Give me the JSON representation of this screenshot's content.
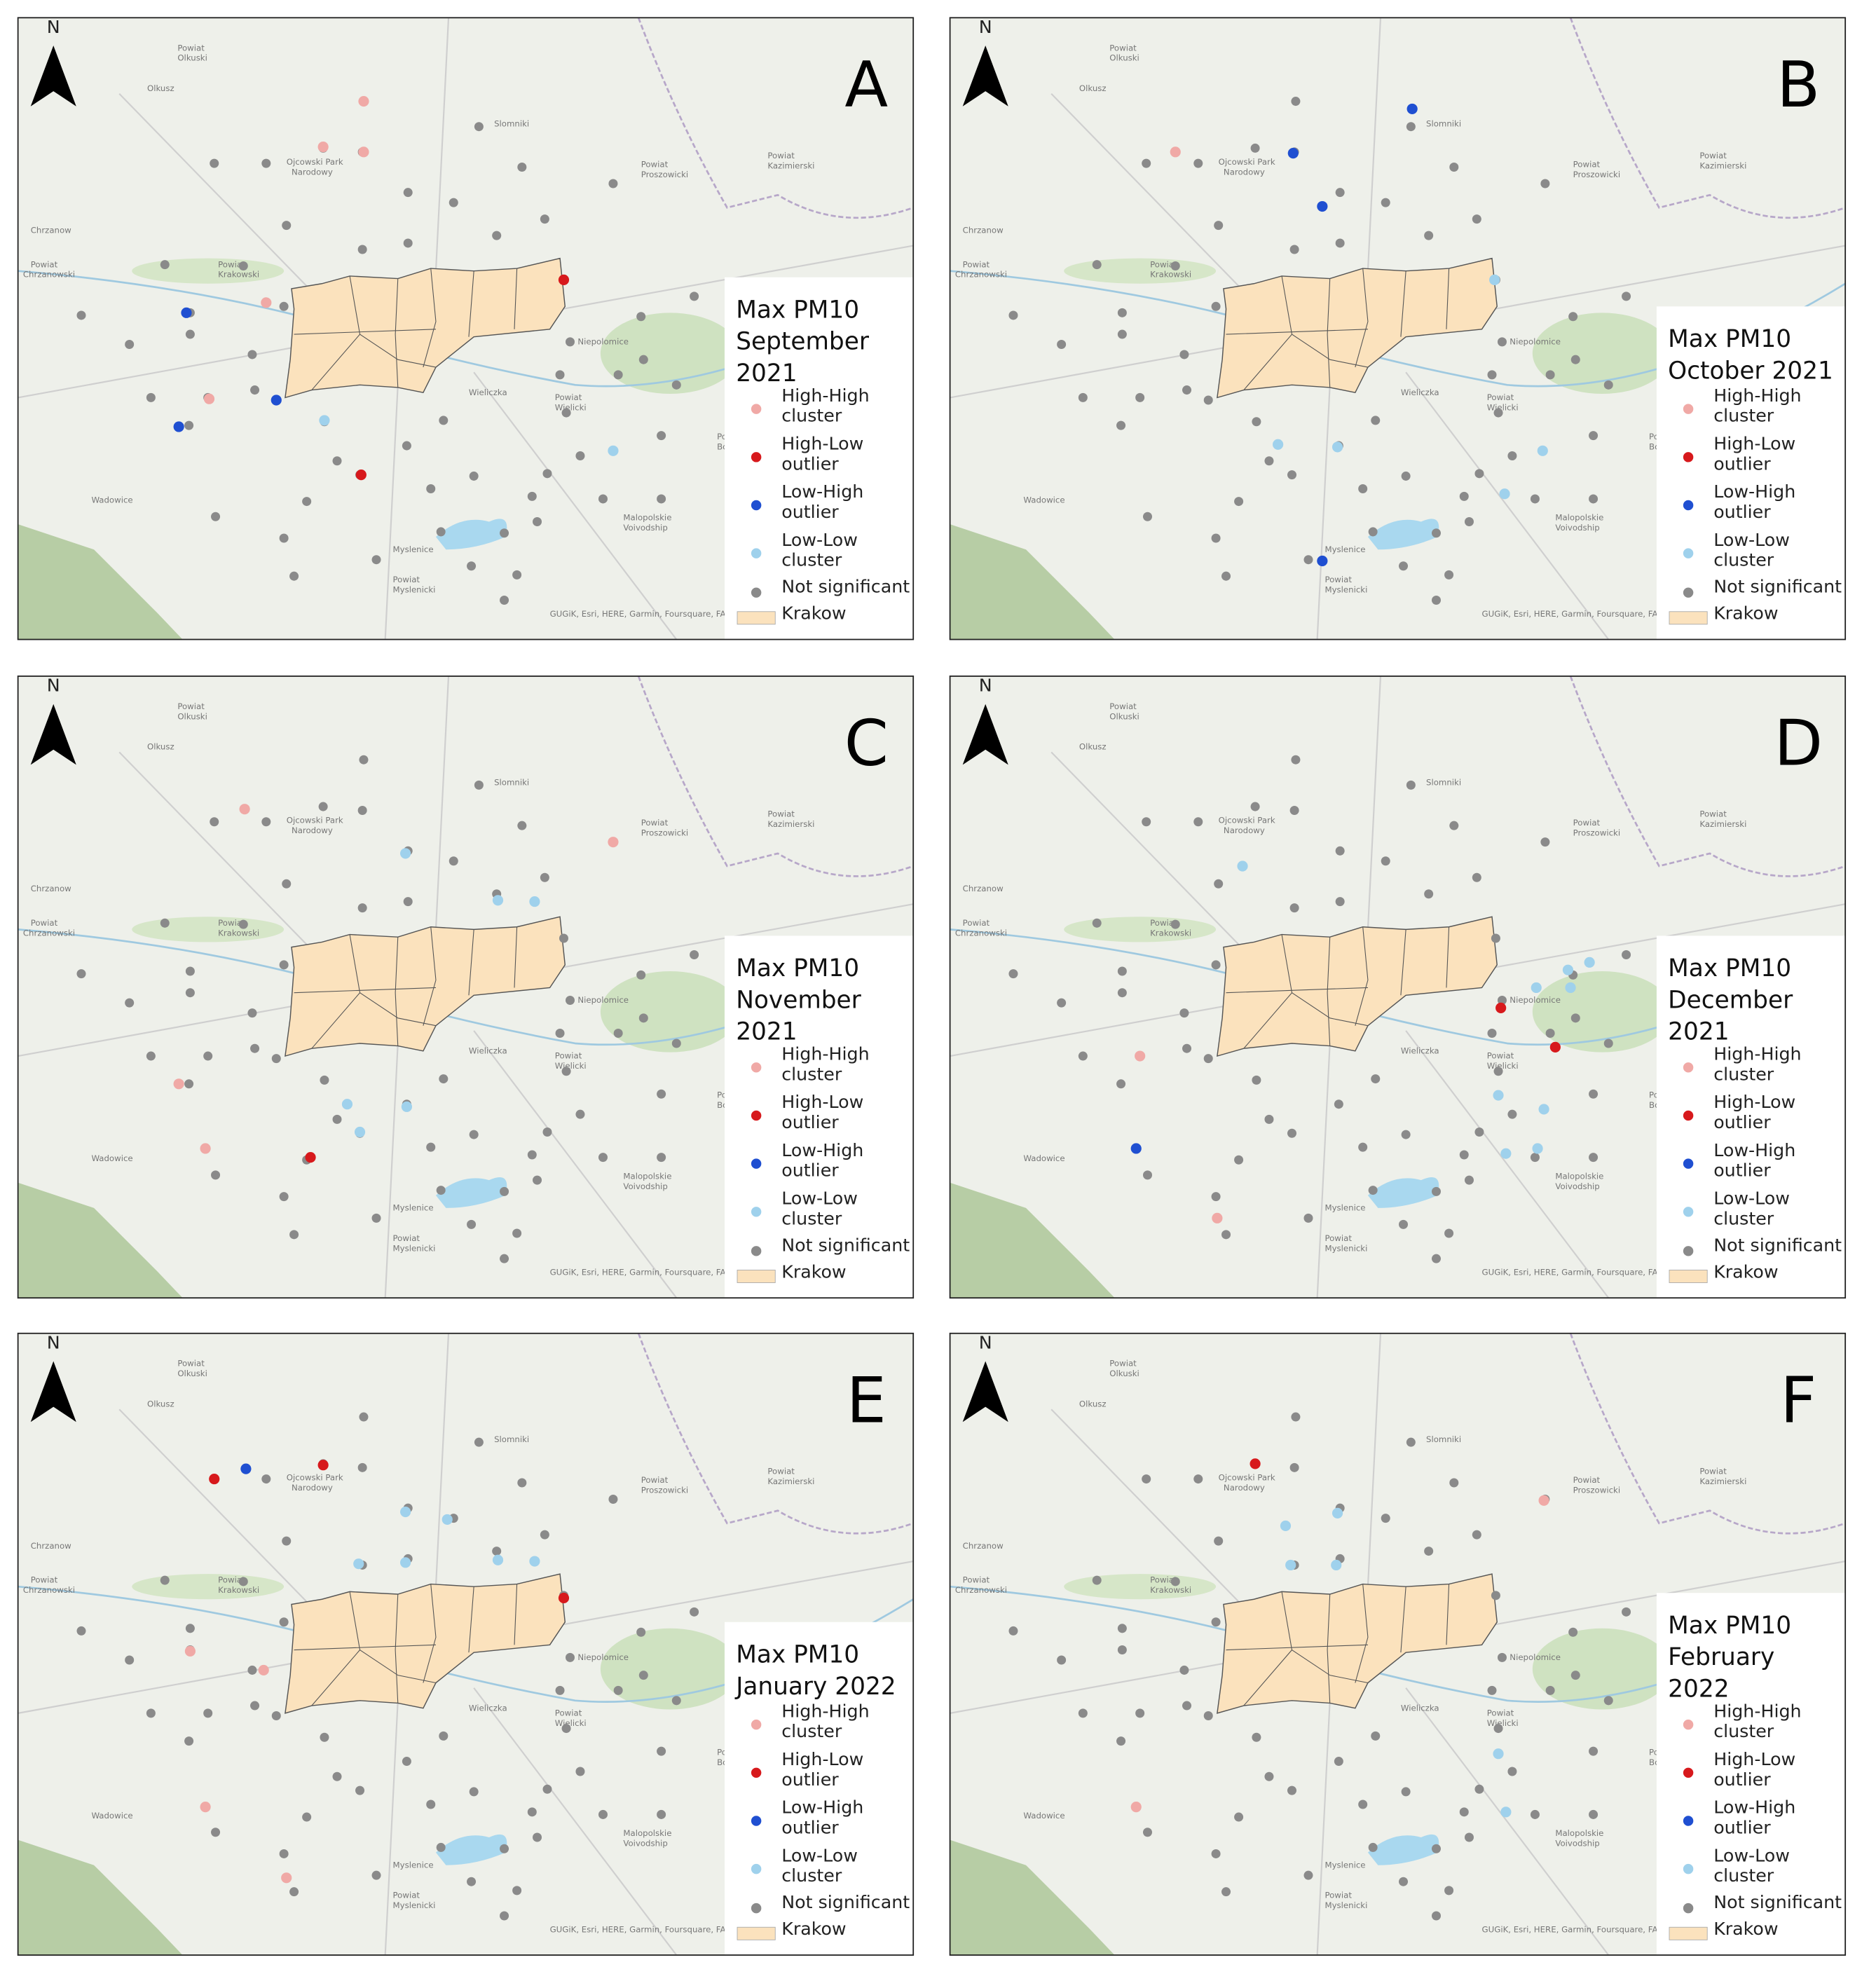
{
  "panels": [
    {
      "letter": "A",
      "title_lines": [
        "Max PM10",
        "September",
        "2021"
      ]
    },
    {
      "letter": "B",
      "title_lines": [
        "Max PM10",
        "October 2021"
      ]
    },
    {
      "letter": "C",
      "title_lines": [
        "Max PM10",
        "November",
        "2021"
      ]
    },
    {
      "letter": "D",
      "title_lines": [
        "Max PM10",
        "December",
        "2021"
      ]
    },
    {
      "letter": "E",
      "title_lines": [
        "Max PM10",
        "January 2022"
      ]
    },
    {
      "letter": "F",
      "title_lines": [
        "Max PM10",
        "February",
        "2022"
      ]
    }
  ],
  "north": "N",
  "legend": [
    {
      "lines": [
        "High-High",
        "cluster"
      ],
      "color": "#f0a9a6"
    },
    {
      "lines": [
        "High-Low",
        "outlier"
      ],
      "color": "#d7191c"
    },
    {
      "lines": [
        "Low-High",
        "outlier"
      ],
      "color": "#1f4fd1"
    },
    {
      "lines": [
        "Low-Low",
        "cluster"
      ],
      "color": "#9fd1ec"
    },
    {
      "lines": [
        "Not significant"
      ],
      "color": "#8a8a8a"
    },
    {
      "lines": [
        "Krakow"
      ],
      "color": "#fbe2bd"
    }
  ],
  "map_labels": [
    "Powiat",
    "Olkuski",
    "Olkusz",
    "Slomniki",
    "Powiat",
    "Kazimierski",
    "Ojcowski Park",
    "Narodowy",
    "Powiat",
    "Proszowicki",
    "Chrzanow",
    "Powiat",
    "Chrzanowski",
    "Powiat",
    "Krakowski",
    "Niepolomice",
    "Wieliczka",
    "Powiat",
    "Wielicki",
    "Wadowice",
    "Myslenice",
    "Powiat",
    "Myslenicki",
    "Malopolskie",
    "Voivodship",
    "Powiat",
    "Bochenski"
  ],
  "attribution": "GUGiK, Esri, HERE, Garmin, Foursquare, FAO, METI/NASA"
}
